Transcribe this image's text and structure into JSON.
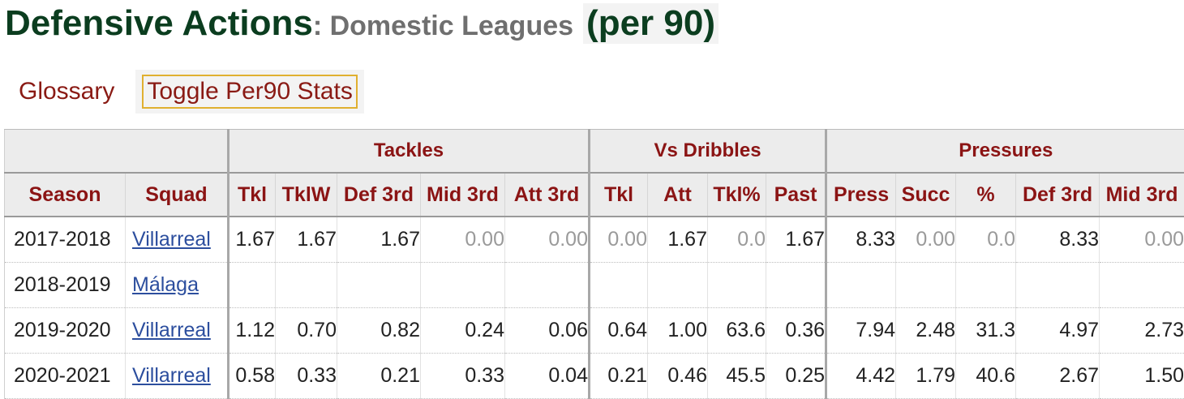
{
  "title": {
    "main": "Defensive Actions",
    "sub": ": Domestic Leagues",
    "per": "(per 90)"
  },
  "filters": {
    "glossary": "Glossary",
    "toggle": "Toggle Per90 Stats"
  },
  "table": {
    "groups": [
      "",
      "Tackles",
      "Vs Dribbles",
      "Pressures"
    ],
    "columns": [
      "Season",
      "Squad",
      "Tkl",
      "TklW",
      "Def 3rd",
      "Mid 3rd",
      "Att 3rd",
      "Tkl",
      "Att",
      "Tkl%",
      "Past",
      "Press",
      "Succ",
      "%",
      "Def 3rd",
      "Mid 3rd"
    ],
    "rows": [
      {
        "season": "2017-2018",
        "squad": "Villarreal",
        "values": [
          "1.67",
          "1.67",
          "1.67",
          "0.00",
          "0.00",
          "0.00",
          "1.67",
          "0.0",
          "1.67",
          "8.33",
          "0.00",
          "0.0",
          "8.33",
          "0.00"
        ]
      },
      {
        "season": "2018-2019",
        "squad": "Málaga",
        "values": [
          "",
          "",
          "",
          "",
          "",
          "",
          "",
          "",
          "",
          "",
          "",
          "",
          "",
          ""
        ]
      },
      {
        "season": "2019-2020",
        "squad": "Villarreal",
        "values": [
          "1.12",
          "0.70",
          "0.82",
          "0.24",
          "0.06",
          "0.64",
          "1.00",
          "63.6",
          "0.36",
          "7.94",
          "2.48",
          "31.3",
          "4.97",
          "2.73"
        ]
      },
      {
        "season": "2020-2021",
        "squad": "Villarreal",
        "values": [
          "0.58",
          "0.33",
          "0.21",
          "0.33",
          "0.04",
          "0.21",
          "0.46",
          "45.5",
          "0.25",
          "4.42",
          "1.79",
          "40.6",
          "2.67",
          "1.50"
        ]
      }
    ]
  }
}
